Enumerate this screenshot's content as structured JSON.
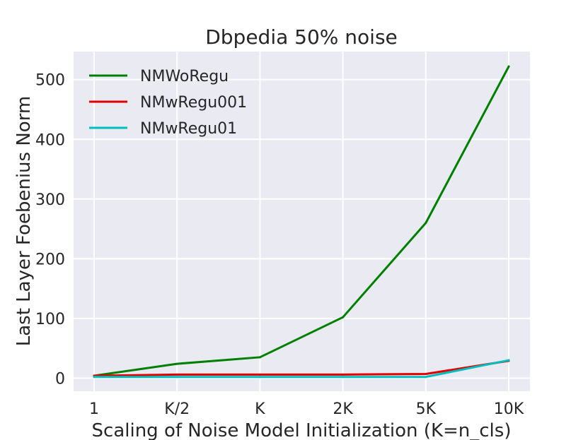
{
  "chart_data": {
    "type": "line",
    "title": "Dbpedia 50% noise",
    "xlabel": "Scaling of Noise Model Initialization (K=n_cls)",
    "ylabel": "Last Layer Foebenius Norm",
    "categories": [
      "1",
      "K/2",
      "K",
      "2K",
      "5K",
      "10K"
    ],
    "yticks": [
      "0",
      "100",
      "200",
      "300",
      "400",
      "500"
    ],
    "ylim": [
      -22,
      547
    ],
    "grid": true,
    "legend_position": "top-left",
    "series": [
      {
        "name": "NMWoRegu",
        "color": "#008000",
        "values": [
          4,
          24,
          35,
          102,
          260,
          522
        ]
      },
      {
        "name": "NMwRegu001",
        "color": "#e00000",
        "values": [
          4,
          6,
          6,
          6,
          7,
          29
        ]
      },
      {
        "name": "NMwRegu01",
        "color": "#00bfbf",
        "values": [
          2,
          2,
          2,
          2,
          2,
          30
        ]
      }
    ]
  }
}
